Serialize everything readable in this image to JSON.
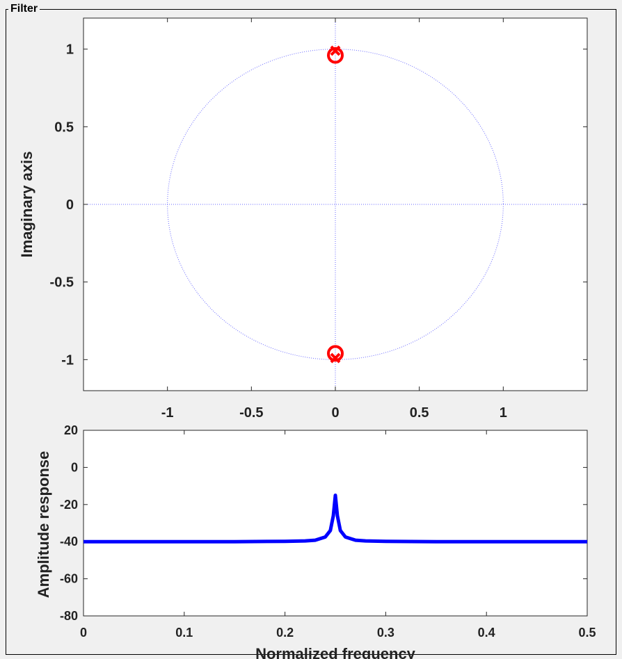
{
  "panel": {
    "title": "Filter"
  },
  "chart_data": [
    {
      "type": "scatter",
      "title": "",
      "xlabel": "",
      "ylabel": "Imaginary axis",
      "xlim": [
        -1.5,
        1.5
      ],
      "ylim": [
        -1.2,
        1.2
      ],
      "xticks": [
        -1,
        -0.5,
        0,
        0.5,
        1
      ],
      "xtick_labels": [
        "-1",
        "-0.5",
        "0",
        "0.5",
        "1"
      ],
      "yticks": [
        1,
        0.5,
        0,
        -0.5,
        -1
      ],
      "ytick_labels": [
        "1",
        "0.5",
        "0",
        "-0.5",
        "-1"
      ],
      "unit_circle": true,
      "grid": false,
      "series": [
        {
          "marker": "o",
          "color": "#ff0000",
          "points": [
            [
              0,
              0.96
            ],
            [
              0,
              -0.96
            ]
          ]
        },
        {
          "marker": "x",
          "color": "#ff0000",
          "points": [
            [
              0,
              0.99
            ],
            [
              0,
              -0.99
            ]
          ]
        }
      ]
    },
    {
      "type": "line",
      "title": "",
      "xlabel": "Normalized frequency",
      "ylabel": "Amplitude response",
      "xlim": [
        0,
        0.5
      ],
      "ylim": [
        -80,
        20
      ],
      "xticks": [
        0,
        0.1,
        0.2,
        0.3,
        0.4,
        0.5
      ],
      "xtick_labels": [
        "0",
        "0.1",
        "0.2",
        "0.3",
        "0.4",
        "0.5"
      ],
      "yticks": [
        20,
        0,
        -20,
        -40,
        -60,
        -80
      ],
      "ytick_labels": [
        "20",
        "0",
        "-20",
        "-40",
        "-60",
        "-80"
      ],
      "grid": false,
      "series": [
        {
          "color": "#0000ff",
          "x": [
            0,
            0.05,
            0.1,
            0.15,
            0.2,
            0.22,
            0.23,
            0.24,
            0.245,
            0.248,
            0.25,
            0.252,
            0.255,
            0.26,
            0.27,
            0.28,
            0.3,
            0.35,
            0.4,
            0.45,
            0.5
          ],
          "y": [
            -40,
            -40,
            -40,
            -40,
            -39.8,
            -39.6,
            -39.2,
            -37.5,
            -34,
            -26,
            -15,
            -26,
            -34,
            -37.5,
            -39.2,
            -39.6,
            -39.8,
            -40,
            -40,
            -40,
            -40
          ]
        }
      ]
    }
  ]
}
